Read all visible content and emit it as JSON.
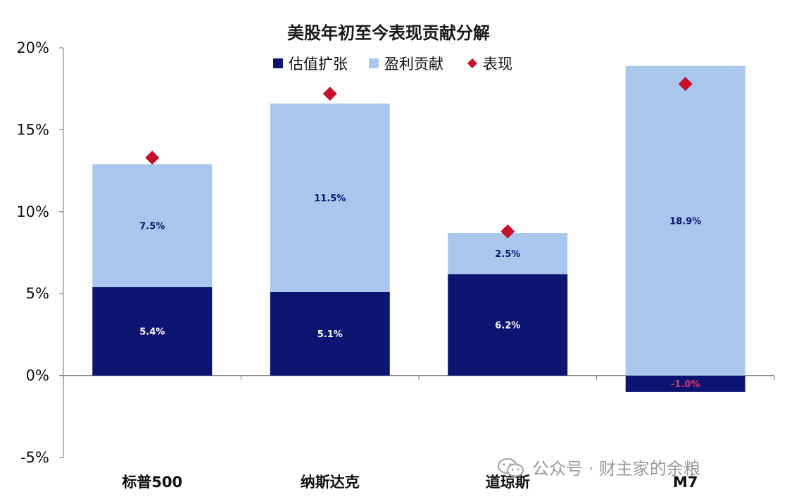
{
  "chart_data": {
    "type": "bar",
    "stacked": true,
    "title": "美股年初至今表现贡献分解",
    "categories": [
      "标普500",
      "纳斯达克",
      "道琼斯",
      "M7"
    ],
    "series": [
      {
        "name": "估值扩张",
        "values": [
          5.4,
          5.1,
          6.2,
          -1.0
        ],
        "labels": [
          "5.4%",
          "5.1%",
          "6.2%",
          "-1.0%"
        ],
        "color": "#0d1573"
      },
      {
        "name": "盈利贡献",
        "values": [
          7.5,
          11.5,
          2.5,
          18.9
        ],
        "labels": [
          "7.5%",
          "11.5%",
          "2.5%",
          "18.9%"
        ],
        "color": "#a9c7ec"
      }
    ],
    "markers": {
      "name": "表现",
      "values": [
        13.3,
        17.2,
        8.8,
        17.8
      ],
      "color": "#c8102e",
      "shape": "diamond"
    },
    "ylim": [
      -5,
      20
    ],
    "yticks": [
      -5,
      0,
      5,
      10,
      15,
      20
    ],
    "ytick_labels": [
      "-5%",
      "0%",
      "5%",
      "10%",
      "15%",
      "20%"
    ],
    "legend_position": "top",
    "grid": false
  },
  "watermark": {
    "text": "公众号 · 财主家的余粮"
  }
}
